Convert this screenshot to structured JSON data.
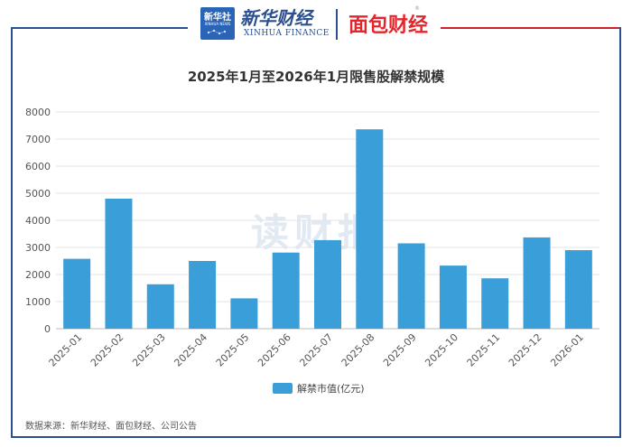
{
  "header": {
    "xinhua_box_label": "新华社",
    "xinhua_box_sub": "XINHUA NEWS",
    "xinhua_finance_cn": "新华财经",
    "xinhua_finance_en": "XINHUA FINANCE",
    "mianbao_label": "面包财经",
    "registered_mark": "®",
    "brand_blue": "#2b4f8f",
    "brand_red": "#e5252c"
  },
  "watermark": "读财报",
  "source_note": "数据来源：新华财经、面包财经、公司公告",
  "chart_data": {
    "type": "bar",
    "title": "2025年1月至2026年1月限售股解禁规模",
    "categories": [
      "2025-01",
      "2025-02",
      "2025-03",
      "2025-04",
      "2025-05",
      "2025-06",
      "2025-07",
      "2025-08",
      "2025-09",
      "2025-10",
      "2025-11",
      "2025-12",
      "2026-01"
    ],
    "series": [
      {
        "name": "解禁市值(亿元)",
        "color": "#3a9ed9",
        "values": [
          2580,
          4800,
          1640,
          2500,
          1120,
          2810,
          3270,
          7360,
          3150,
          2330,
          1860,
          3370,
          2900
        ]
      }
    ],
    "ylim": [
      0,
      8000
    ],
    "yticks": [
      0,
      1000,
      2000,
      3000,
      4000,
      5000,
      6000,
      7000,
      8000
    ],
    "xlabel": "",
    "ylabel": "",
    "grid": true,
    "legend_position": "bottom-center"
  }
}
